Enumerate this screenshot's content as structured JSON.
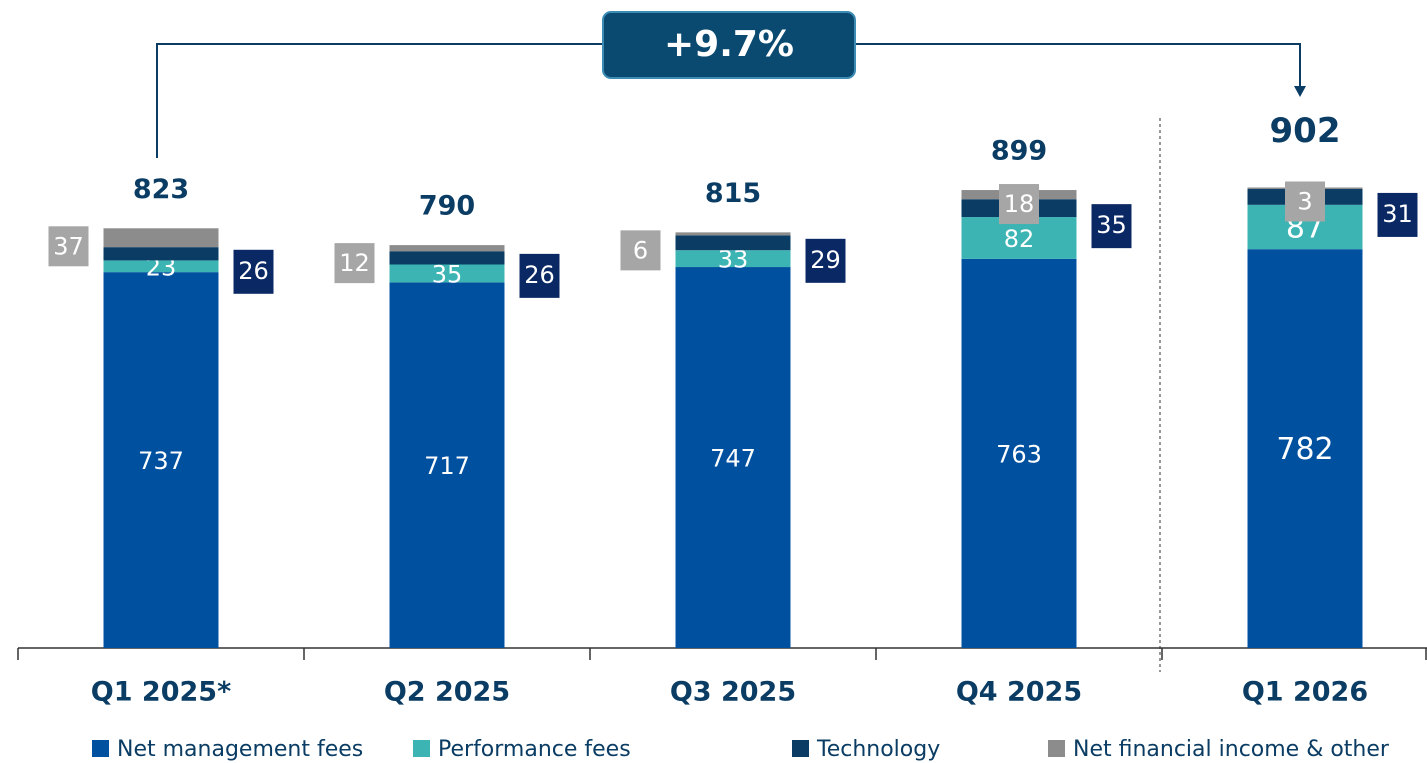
{
  "chart_data": {
    "type": "stacked_bar",
    "categories": [
      "Q1 2025*",
      "Q2 2025",
      "Q3 2025",
      "Q4 2025",
      "Q1 2026"
    ],
    "series": [
      {
        "name": "Net management fees",
        "color": "#0050a0",
        "values": [
          737,
          717,
          747,
          763,
          782
        ]
      },
      {
        "name": "Performance fees",
        "color": "#3cb4b4",
        "values": [
          23,
          35,
          33,
          82,
          87
        ]
      },
      {
        "name": "Technology",
        "color": "#0a3c64",
        "values": [
          26,
          26,
          29,
          35,
          31
        ]
      },
      {
        "name": "Net financial income & other",
        "color": "#8c8c8c",
        "values": [
          37,
          12,
          6,
          18,
          3
        ]
      }
    ],
    "totals": [
      823,
      790,
      815,
      899,
      902
    ],
    "annotation": "+9.7%",
    "legend": "bottom"
  }
}
